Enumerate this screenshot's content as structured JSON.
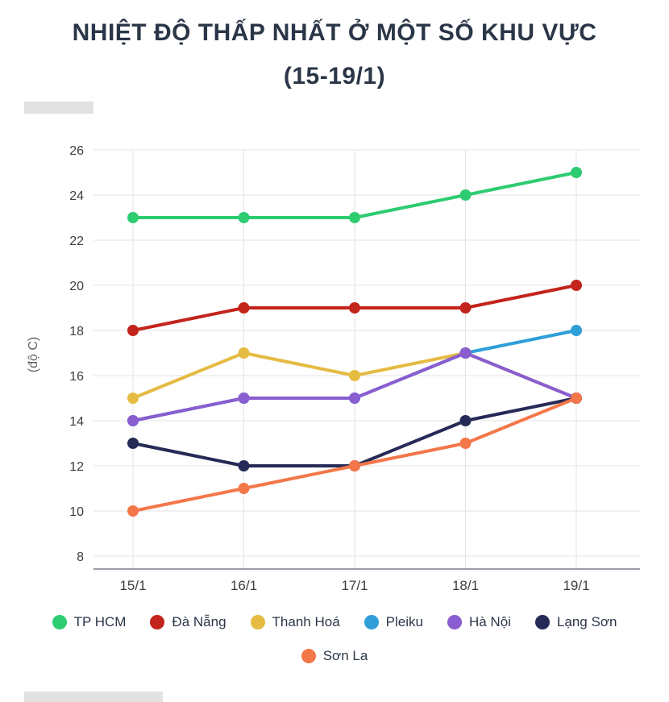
{
  "title": {
    "line1": "NHIỆT ĐỘ THẤP NHẤT Ở MỘT SỐ KHU VỰC",
    "line2": "(15-19/1)"
  },
  "chart_data": {
    "type": "line",
    "title": "NHIỆT ĐỘ THẤP NHẤT Ở MỘT SỐ KHU VỰC (15-19/1)",
    "categories": [
      "15/1",
      "16/1",
      "17/1",
      "18/1",
      "19/1"
    ],
    "series": [
      {
        "name": "TP HCM",
        "color": "#2ecc71",
        "values": [
          23,
          23,
          23,
          24,
          25
        ]
      },
      {
        "name": "Đà Nẵng",
        "color": "#c3241c",
        "values": [
          18,
          19,
          19,
          19,
          20
        ]
      },
      {
        "name": "Thanh Hoá",
        "color": "#e5bb42",
        "values": [
          15,
          17,
          16,
          17,
          15
        ]
      },
      {
        "name": "Pleiku",
        "color": "#2f9fd8",
        "values": [
          14,
          15,
          15,
          17,
          18
        ]
      },
      {
        "name": "Hà Nội",
        "color": "#8a5dd0",
        "values": [
          14,
          15,
          15,
          17,
          15
        ]
      },
      {
        "name": "Lạng Sơn",
        "color": "#262a56",
        "values": [
          13,
          12,
          12,
          14,
          15
        ]
      },
      {
        "name": "Sơn La",
        "color": "#f4774a",
        "values": [
          10,
          11,
          12,
          13,
          15
        ]
      }
    ],
    "xlabel": "",
    "ylabel": "(độ C)",
    "ylim": [
      8,
      26
    ],
    "ytick_step": 2,
    "grid": true,
    "legend_position": "bottom"
  }
}
